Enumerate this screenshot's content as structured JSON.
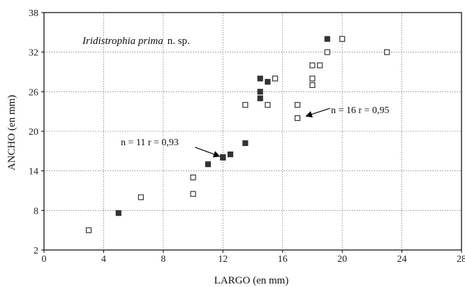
{
  "chart_data": {
    "type": "scatter",
    "species_italic": "Iridistrophia prima",
    "species_suffix": "n. sp.",
    "xlabel": "LARGO (en mm)",
    "ylabel": "ANCHO (en mm)",
    "xlim": [
      0,
      28
    ],
    "ylim": [
      2,
      38
    ],
    "xticks": [
      0,
      4,
      8,
      12,
      16,
      20,
      24,
      28
    ],
    "yticks": [
      2,
      8,
      14,
      20,
      26,
      32,
      38
    ],
    "grid": true,
    "series": [
      {
        "marker": "filled-square",
        "color": "#333333",
        "annotation": "n = 11  r = 0,93",
        "arrow_to": [
          12,
          16
        ],
        "points": [
          {
            "x": 5,
            "y": 7.6
          },
          {
            "x": 11,
            "y": 15
          },
          {
            "x": 12,
            "y": 16
          },
          {
            "x": 12.5,
            "y": 16.5
          },
          {
            "x": 13.5,
            "y": 18.2
          },
          {
            "x": 14.5,
            "y": 25
          },
          {
            "x": 14.5,
            "y": 26
          },
          {
            "x": 14.5,
            "y": 28
          },
          {
            "x": 15,
            "y": 27.5
          },
          {
            "x": 19,
            "y": 34
          },
          {
            "x": 12,
            "y": 16.1
          }
        ]
      },
      {
        "marker": "open-square",
        "color": "#333333",
        "annotation": "n = 16  r = 0,95",
        "arrow_to": [
          17.3,
          22.2
        ],
        "points": [
          {
            "x": 3,
            "y": 5
          },
          {
            "x": 6.5,
            "y": 10
          },
          {
            "x": 10,
            "y": 10.5
          },
          {
            "x": 10,
            "y": 13
          },
          {
            "x": 13.5,
            "y": 24
          },
          {
            "x": 15,
            "y": 24
          },
          {
            "x": 15.5,
            "y": 28
          },
          {
            "x": 17,
            "y": 22
          },
          {
            "x": 17,
            "y": 24
          },
          {
            "x": 18,
            "y": 27
          },
          {
            "x": 18,
            "y": 28
          },
          {
            "x": 18,
            "y": 30
          },
          {
            "x": 18.5,
            "y": 30
          },
          {
            "x": 19,
            "y": 32
          },
          {
            "x": 20,
            "y": 34
          },
          {
            "x": 23,
            "y": 32
          }
        ]
      }
    ]
  }
}
